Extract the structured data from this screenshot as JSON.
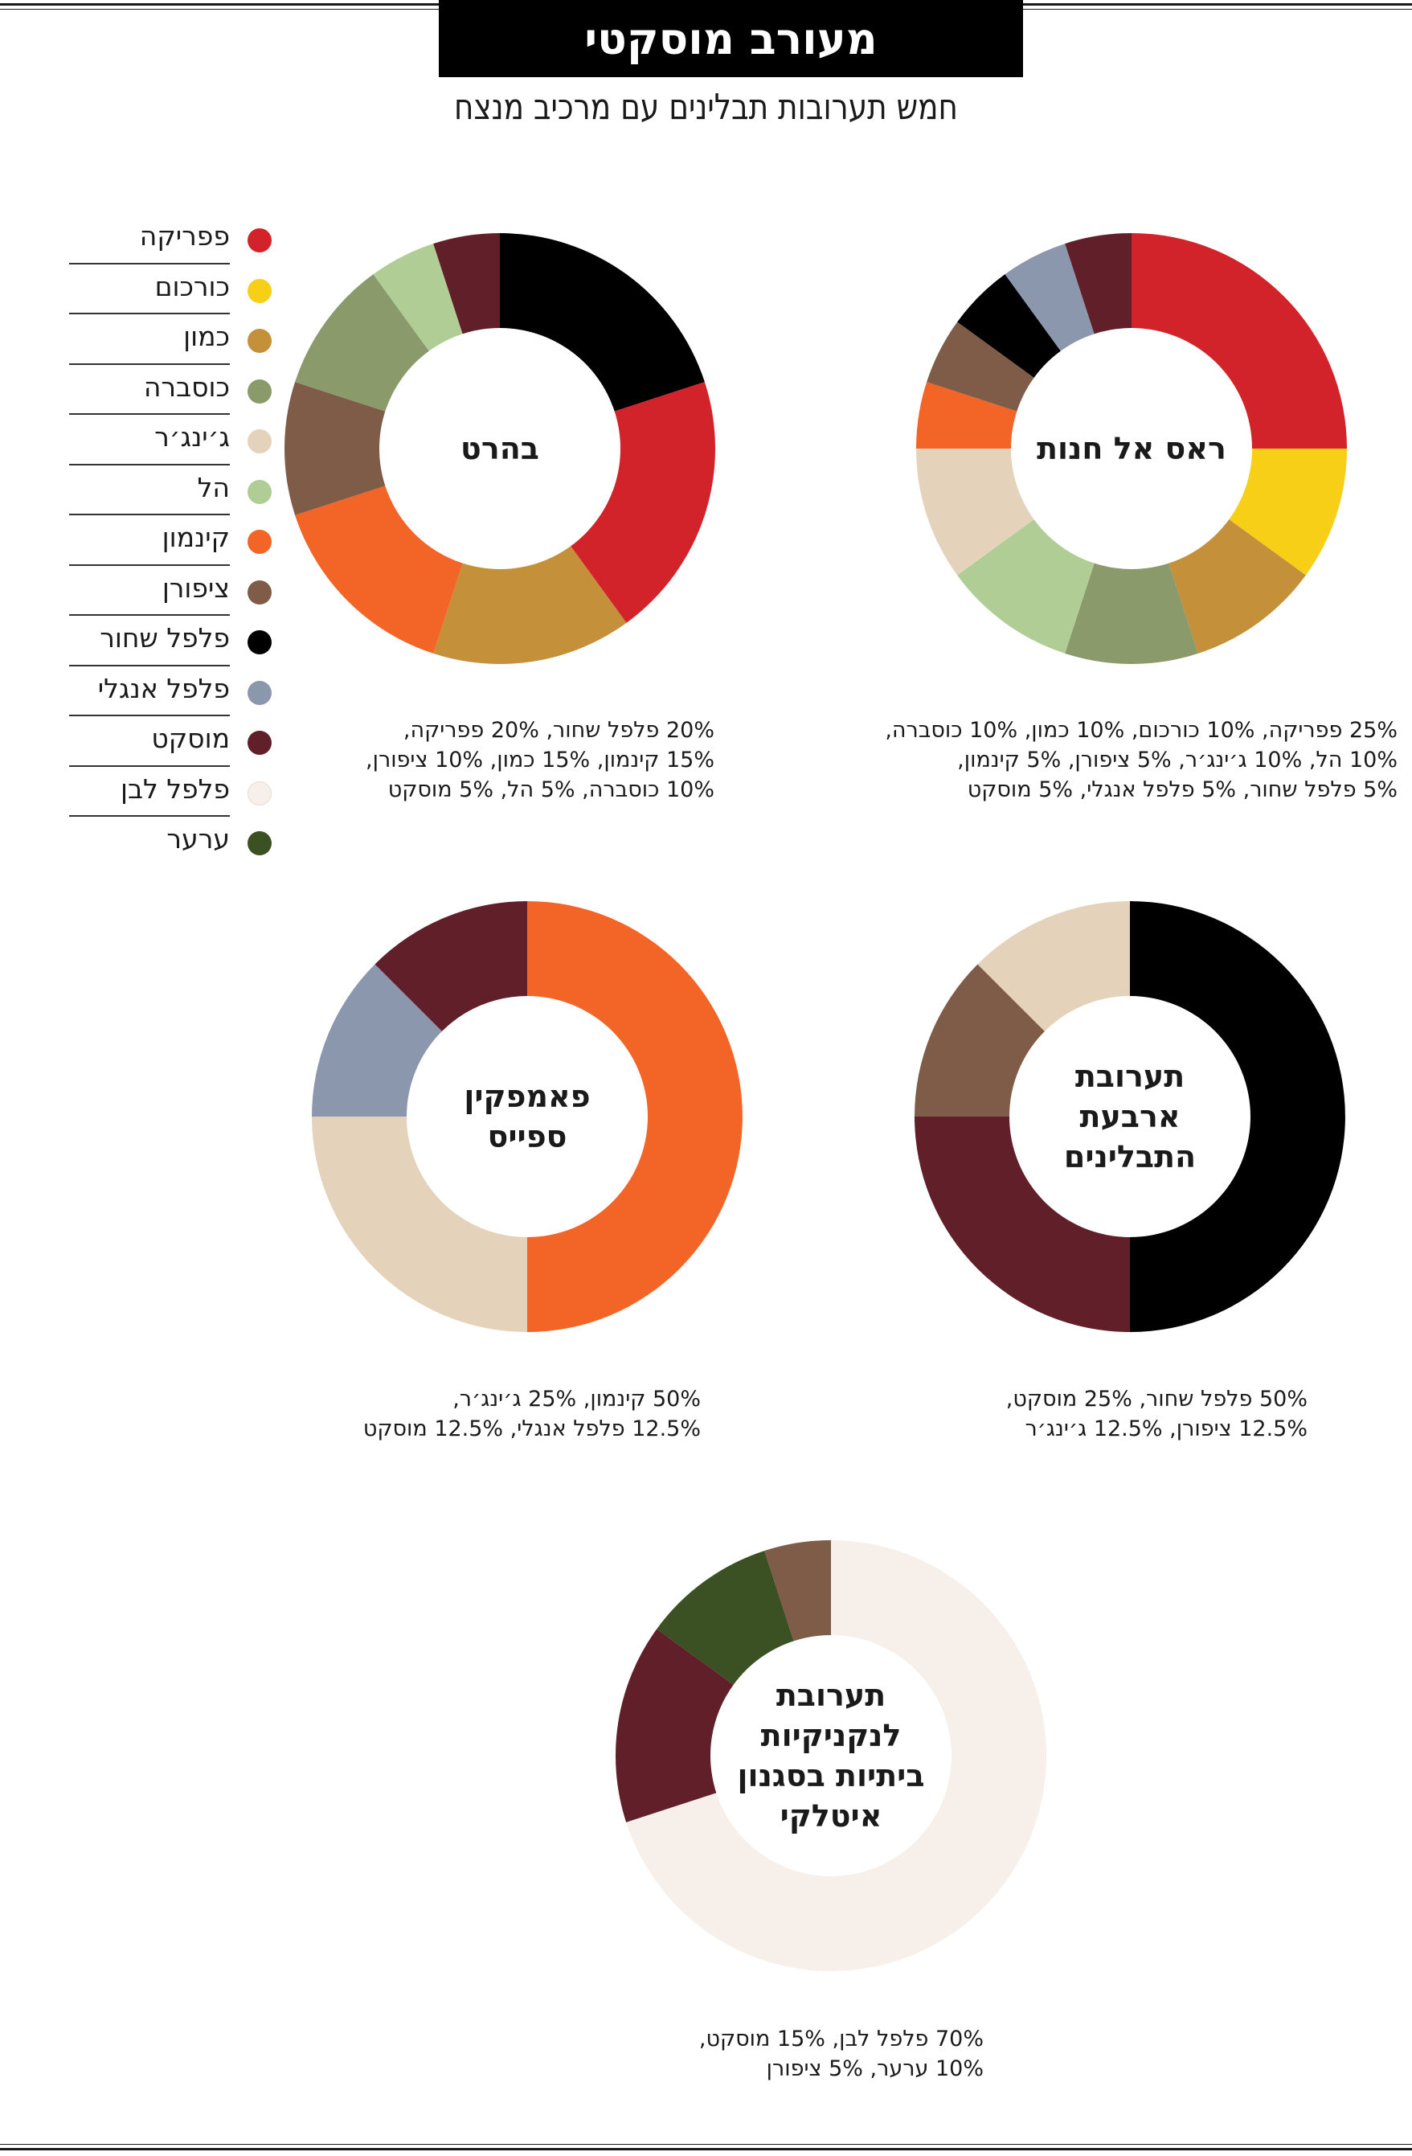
{
  "header": {
    "title": "מעורב מוסקטי",
    "subtitle": "חמש תערובות תבלינים עם מרכיב מנצח"
  },
  "legend": [
    {
      "label": "פפריקה",
      "color": "#d2232a"
    },
    {
      "label": "כורכום",
      "color": "#f7cf17"
    },
    {
      "label": "כמון",
      "color": "#c4903a"
    },
    {
      "label": "כוסברה",
      "color": "#8b9a6a"
    },
    {
      "label": "ג׳ינג׳ר",
      "color": "#e4d3ba"
    },
    {
      "label": "הל",
      "color": "#b0cd95"
    },
    {
      "label": "קינמון",
      "color": "#f26527"
    },
    {
      "label": "ציפורן",
      "color": "#7f5c47"
    },
    {
      "label": "פלפל שחור",
      "color": "#000000"
    },
    {
      "label": "פלפל אנגלי",
      "color": "#8b97ad"
    },
    {
      "label": "מוסקט",
      "color": "#611f29"
    },
    {
      "label": "פלפל לבן",
      "color": "#f7efe9"
    },
    {
      "label": "ערער",
      "color": "#3b5023"
    }
  ],
  "chart_data": [
    {
      "type": "pie",
      "title": "ראס אל חנות",
      "title_lines": [
        "ראס אל חנות"
      ],
      "slices": [
        {
          "label": "פפריקה",
          "value": 25,
          "color": "#d2232a"
        },
        {
          "label": "כורכום",
          "value": 10,
          "color": "#f7cf17"
        },
        {
          "label": "כמון",
          "value": 10,
          "color": "#c4903a"
        },
        {
          "label": "כוסברה",
          "value": 10,
          "color": "#8b9a6a"
        },
        {
          "label": "הל",
          "value": 10,
          "color": "#b0cd95"
        },
        {
          "label": "ג׳ינג׳ר",
          "value": 10,
          "color": "#e4d3ba"
        },
        {
          "label": "קינמון",
          "value": 5,
          "color": "#f26527"
        },
        {
          "label": "ציפורן",
          "value": 5,
          "color": "#7f5c47"
        },
        {
          "label": "פלפל שחור",
          "value": 5,
          "color": "#000000"
        },
        {
          "label": "פלפל אנגלי",
          "value": 5,
          "color": "#8b97ad"
        },
        {
          "label": "מוסקט",
          "value": 5,
          "color": "#611f29"
        }
      ],
      "caption": [
        "25% פפריקה, 10% כורכום, 10% כמון, 10% כוסברה,",
        "10% הל, 10% ג׳ינג׳ר, 5% ציפורן, 5% קינמון,",
        "5% פלפל שחור, 5% פלפל אנגלי, 5% מוסקט"
      ]
    },
    {
      "type": "pie",
      "title": "בהרט",
      "title_lines": [
        "בהרט"
      ],
      "slices": [
        {
          "label": "פלפל שחור",
          "value": 20,
          "color": "#000000"
        },
        {
          "label": "פפריקה",
          "value": 20,
          "color": "#d2232a"
        },
        {
          "label": "כמון",
          "value": 15,
          "color": "#c4903a"
        },
        {
          "label": "קינמון",
          "value": 15,
          "color": "#f26527"
        },
        {
          "label": "ציפורן",
          "value": 10,
          "color": "#7f5c47"
        },
        {
          "label": "כוסברה",
          "value": 10,
          "color": "#8b9a6a"
        },
        {
          "label": "הל",
          "value": 5,
          "color": "#b0cd95"
        },
        {
          "label": "מוסקט",
          "value": 5,
          "color": "#611f29"
        }
      ],
      "caption": [
        "20% פלפל שחור, 20% פפריקה,",
        "15% קינמון, 15% כמון, 10% ציפורן,",
        "10% כוסברה, 5% הל, 5% מוסקט"
      ]
    },
    {
      "type": "pie",
      "title": "תערובת ארבעת התבלינים",
      "title_lines": [
        "תערובת",
        "ארבעת",
        "התבלינים"
      ],
      "slices": [
        {
          "label": "פלפל שחור",
          "value": 50,
          "color": "#000000"
        },
        {
          "label": "מוסקט",
          "value": 25,
          "color": "#611f29"
        },
        {
          "label": "ציפורן",
          "value": 12.5,
          "color": "#7f5c47"
        },
        {
          "label": "ג׳ינג׳ר",
          "value": 12.5,
          "color": "#e4d3ba"
        }
      ],
      "caption": [
        "50% פלפל שחור, 25% מוסקט,",
        "12.5% ציפורן, 12.5% ג׳ינג׳ר"
      ]
    },
    {
      "type": "pie",
      "title": "פאמפקין ספייס",
      "title_lines": [
        "פאמפקין",
        "ספייס"
      ],
      "slices": [
        {
          "label": "קינמון",
          "value": 50,
          "color": "#f26527"
        },
        {
          "label": "ג׳ינג׳ר",
          "value": 25,
          "color": "#e4d3ba"
        },
        {
          "label": "פלפל אנגלי",
          "value": 12.5,
          "color": "#8b97ad"
        },
        {
          "label": "מוסקט",
          "value": 12.5,
          "color": "#611f29"
        }
      ],
      "caption": [
        "50% קינמון, 25% ג׳ינג׳ר,",
        "12.5% פלפל אנגלי, 12.5% מוסקט"
      ]
    },
    {
      "type": "pie",
      "title": "תערובת לנקניקיות ביתיות בסגנון איטלקי",
      "title_lines": [
        "תערובת",
        "לנקניקיות",
        "ביתיות בסגנון",
        "איטלקי"
      ],
      "slices": [
        {
          "label": "פלפל לבן",
          "value": 70,
          "color": "#f7efe9"
        },
        {
          "label": "מוסקט",
          "value": 15,
          "color": "#611f29"
        },
        {
          "label": "ערער",
          "value": 10,
          "color": "#3b5023"
        },
        {
          "label": "ציפורן",
          "value": 5,
          "color": "#7f5c47"
        }
      ],
      "caption": [
        "70% פלפל לבן, 15% מוסקט,",
        "10% ערער, 5% ציפורן"
      ]
    }
  ]
}
